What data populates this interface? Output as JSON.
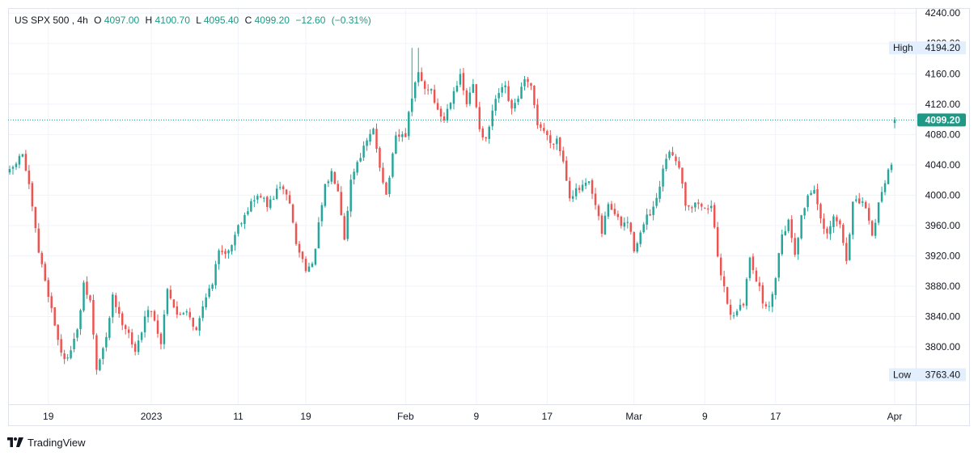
{
  "header": {
    "symbol": "US SPX 500",
    "interval": "4h",
    "open_label": "O",
    "open": "4097.00",
    "high_label": "H",
    "high": "4100.70",
    "low_label": "L",
    "low": "4095.40",
    "close_label": "C",
    "close": "4099.20",
    "change": "−12.60",
    "change_pct": "(−0.31%)"
  },
  "footer": {
    "brand": "TradingView"
  },
  "colors": {
    "up": "#26a69a",
    "down": "#ef5350",
    "up_wick": "#1b8a7f",
    "last_price_badge": "#1e9985",
    "grid": "#f0f3fa",
    "border": "#e0e3eb",
    "badge_bg": "#e3effd"
  },
  "chart_data": {
    "type": "candlestick",
    "title": "US SPX 500, 4h",
    "y_axis": {
      "range": [
        3760,
        4240
      ],
      "ticks": [
        3800,
        3840,
        3880,
        3920,
        3960,
        4000,
        4040,
        4080,
        4120,
        4160,
        4200,
        4240
      ],
      "tick_labels": [
        "3800.00",
        "3840.00",
        "3880.00",
        "3920.00",
        "3960.00",
        "4000.00",
        "4040.00",
        "4080.00",
        "4120.00",
        "4160.00",
        "4200.00",
        "4240.00"
      ]
    },
    "x_axis": {
      "labels": [
        {
          "label": "19",
          "index": 12
        },
        {
          "label": "2023",
          "index": 44
        },
        {
          "label": "11",
          "index": 71
        },
        {
          "label": "19",
          "index": 92
        },
        {
          "label": "Feb",
          "index": 123
        },
        {
          "label": "9",
          "index": 145
        },
        {
          "label": "17",
          "index": 167
        },
        {
          "label": "Mar",
          "index": 194
        },
        {
          "label": "9",
          "index": 216
        },
        {
          "label": "17",
          "index": 238
        },
        {
          "label": "Apr",
          "index": 275
        }
      ]
    },
    "high": {
      "label": "High",
      "value": 4194.2,
      "text": "4194.20"
    },
    "low": {
      "label": "Low",
      "value": 3763.4,
      "text": "3763.40"
    },
    "last_price": {
      "value": 4099.2,
      "text": "4099.20"
    },
    "grid": true,
    "candle_count": 276,
    "anchors": [
      [
        0,
        4030
      ],
      [
        4,
        4055
      ],
      [
        6,
        4010
      ],
      [
        9,
        3925
      ],
      [
        12,
        3870
      ],
      [
        15,
        3810
      ],
      [
        17,
        3780
      ],
      [
        21,
        3820
      ],
      [
        23,
        3880
      ],
      [
        25,
        3860
      ],
      [
        27,
        3770
      ],
      [
        30,
        3810
      ],
      [
        32,
        3870
      ],
      [
        34,
        3840
      ],
      [
        37,
        3820
      ],
      [
        39,
        3790
      ],
      [
        42,
        3840
      ],
      [
        44,
        3850
      ],
      [
        47,
        3805
      ],
      [
        49,
        3880
      ],
      [
        52,
        3840
      ],
      [
        55,
        3850
      ],
      [
        58,
        3820
      ],
      [
        61,
        3870
      ],
      [
        63,
        3880
      ],
      [
        65,
        3930
      ],
      [
        68,
        3925
      ],
      [
        71,
        3960
      ],
      [
        73,
        3975
      ],
      [
        75,
        3990
      ],
      [
        78,
        4000
      ],
      [
        80,
        3985
      ],
      [
        83,
        4005
      ],
      [
        85,
        4010
      ],
      [
        87,
        3990
      ],
      [
        89,
        3935
      ],
      [
        92,
        3905
      ],
      [
        94,
        3905
      ],
      [
        96,
        3960
      ],
      [
        98,
        4010
      ],
      [
        100,
        4030
      ],
      [
        102,
        4010
      ],
      [
        104,
        3945
      ],
      [
        106,
        4020
      ],
      [
        108,
        4045
      ],
      [
        111,
        4070
      ],
      [
        113,
        4085
      ],
      [
        115,
        4040
      ],
      [
        117,
        4000
      ],
      [
        120,
        4075
      ],
      [
        123,
        4080
      ],
      [
        125,
        4130
      ],
      [
        127,
        4160
      ],
      [
        129,
        4140
      ],
      [
        131,
        4140
      ],
      [
        133,
        4110
      ],
      [
        135,
        4100
      ],
      [
        138,
        4140
      ],
      [
        140,
        4155
      ],
      [
        142,
        4120
      ],
      [
        144,
        4145
      ],
      [
        146,
        4090
      ],
      [
        148,
        4070
      ],
      [
        150,
        4110
      ],
      [
        152,
        4135
      ],
      [
        154,
        4140
      ],
      [
        156,
        4110
      ],
      [
        158,
        4130
      ],
      [
        160,
        4150
      ],
      [
        162,
        4140
      ],
      [
        164,
        4095
      ],
      [
        166,
        4085
      ],
      [
        168,
        4070
      ],
      [
        170,
        4075
      ],
      [
        172,
        4045
      ],
      [
        174,
        4000
      ],
      [
        176,
        4005
      ],
      [
        178,
        4010
      ],
      [
        180,
        4015
      ],
      [
        182,
        3985
      ],
      [
        184,
        3950
      ],
      [
        186,
        3990
      ],
      [
        188,
        3975
      ],
      [
        190,
        3960
      ],
      [
        192,
        3965
      ],
      [
        194,
        3930
      ],
      [
        196,
        3950
      ],
      [
        198,
        3970
      ],
      [
        200,
        3980
      ],
      [
        202,
        4010
      ],
      [
        204,
        4050
      ],
      [
        206,
        4055
      ],
      [
        208,
        4040
      ],
      [
        210,
        3990
      ],
      [
        212,
        3985
      ],
      [
        214,
        3990
      ],
      [
        216,
        3980
      ],
      [
        218,
        3990
      ],
      [
        220,
        3915
      ],
      [
        222,
        3880
      ],
      [
        224,
        3840
      ],
      [
        226,
        3850
      ],
      [
        228,
        3855
      ],
      [
        230,
        3920
      ],
      [
        232,
        3890
      ],
      [
        234,
        3860
      ],
      [
        236,
        3850
      ],
      [
        238,
        3895
      ],
      [
        240,
        3950
      ],
      [
        242,
        3965
      ],
      [
        244,
        3925
      ],
      [
        246,
        3970
      ],
      [
        248,
        4000
      ],
      [
        250,
        4010
      ],
      [
        252,
        3965
      ],
      [
        254,
        3945
      ],
      [
        256,
        3970
      ],
      [
        258,
        3960
      ],
      [
        260,
        3915
      ],
      [
        262,
        3990
      ],
      [
        264,
        3990
      ],
      [
        266,
        3985
      ],
      [
        268,
        3945
      ],
      [
        270,
        3990
      ],
      [
        272,
        4020
      ],
      [
        274,
        4045
      ],
      [
        276,
        4060
      ],
      [
        278,
        4070
      ],
      [
        280,
        4080
      ],
      [
        282,
        4105
      ],
      [
        284,
        4099.2
      ]
    ]
  }
}
